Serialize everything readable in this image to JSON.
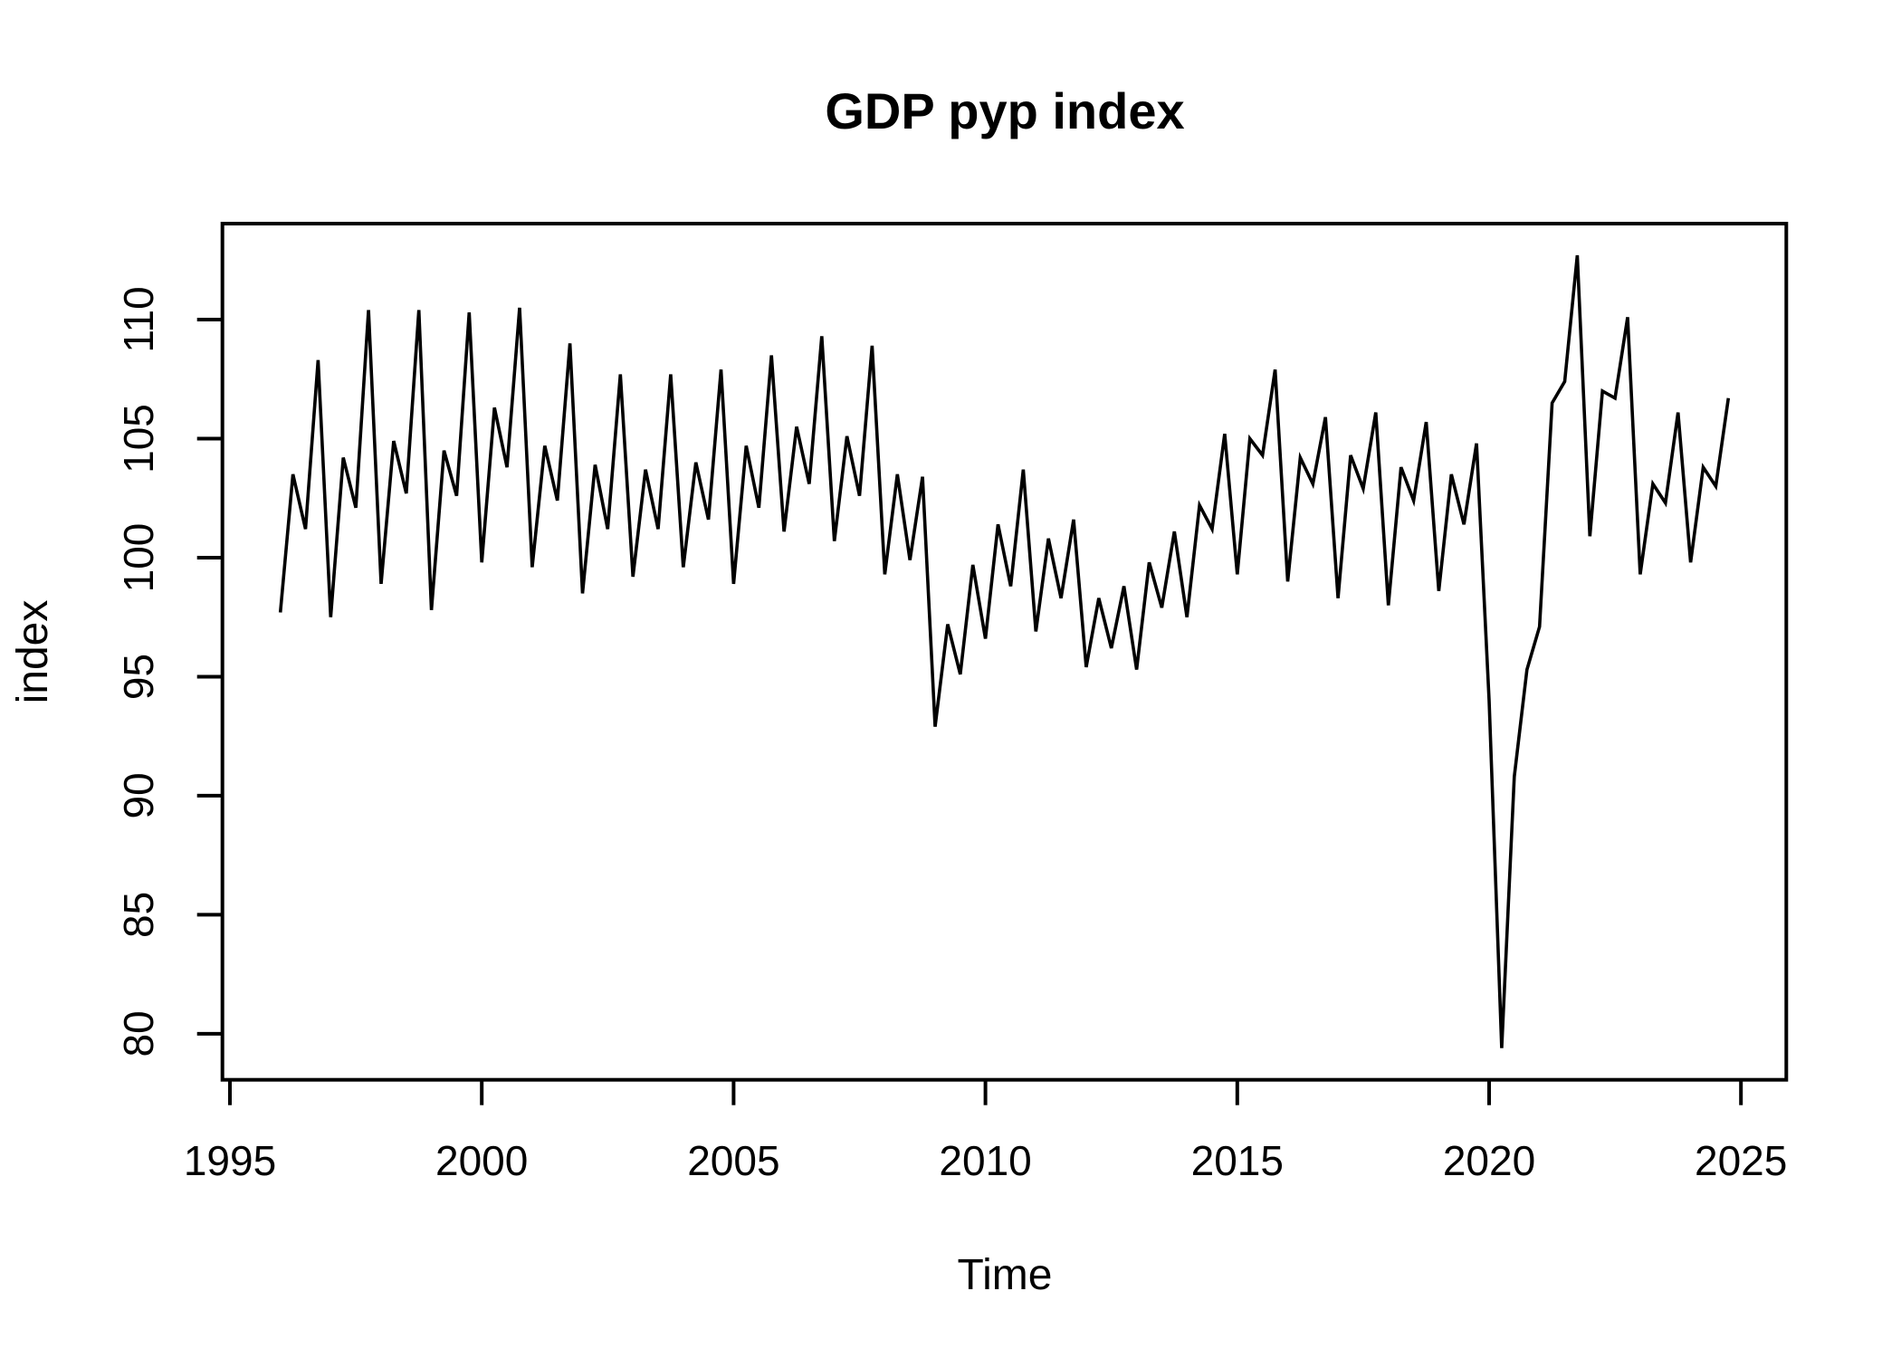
{
  "page": {
    "background_color": "#ffffff",
    "foreground_color": "#000000"
  },
  "chart_data": {
    "type": "line",
    "title": "GDP pyp index",
    "xlabel": "Time",
    "ylabel": "index",
    "series_name": "GDP pyp index, quarterly",
    "x_start": 1996.0,
    "x_step": 0.25,
    "x_ticks": [
      1995,
      2000,
      2005,
      2010,
      2015,
      2020,
      2025
    ],
    "y_ticks": [
      80,
      85,
      90,
      95,
      100,
      105,
      110
    ],
    "x_range": [
      1996.0,
      2024.75
    ],
    "y_range_observed": [
      79.4,
      112.7
    ],
    "axis_expansion": 0.04,
    "grid": false,
    "legend": "none",
    "line_color": "#000000",
    "background_color": "#ffffff",
    "values": [
      97.7,
      103.5,
      101.2,
      108.3,
      97.5,
      104.2,
      102.1,
      110.4,
      98.9,
      104.9,
      102.7,
      110.4,
      97.8,
      104.5,
      102.6,
      110.3,
      99.8,
      106.3,
      103.8,
      110.5,
      99.6,
      104.7,
      102.4,
      109.0,
      98.5,
      103.9,
      101.2,
      107.7,
      99.2,
      103.7,
      101.2,
      107.7,
      99.6,
      104.0,
      101.6,
      107.9,
      98.9,
      104.7,
      102.1,
      108.5,
      101.1,
      105.5,
      103.1,
      109.3,
      100.7,
      105.1,
      102.6,
      108.9,
      99.3,
      103.5,
      99.9,
      103.4,
      92.9,
      97.2,
      95.1,
      99.7,
      96.6,
      101.4,
      98.8,
      103.7,
      96.9,
      100.8,
      98.3,
      101.6,
      95.4,
      98.3,
      96.2,
      98.8,
      95.3,
      99.8,
      97.9,
      101.1,
      97.5,
      102.2,
      101.2,
      105.2,
      99.3,
      105.0,
      104.3,
      107.9,
      99.0,
      104.2,
      103.1,
      105.9,
      98.3,
      104.3,
      102.9,
      106.1,
      98.0,
      103.8,
      102.4,
      105.7,
      98.6,
      103.5,
      101.4,
      104.8,
      94.0,
      79.4,
      90.8,
      95.3,
      97.1,
      106.5,
      107.4,
      112.7,
      100.9,
      107.0,
      106.7,
      110.1,
      99.3,
      103.1,
      102.3,
      106.1,
      99.8,
      103.8,
      103.0,
      106.7
    ]
  }
}
